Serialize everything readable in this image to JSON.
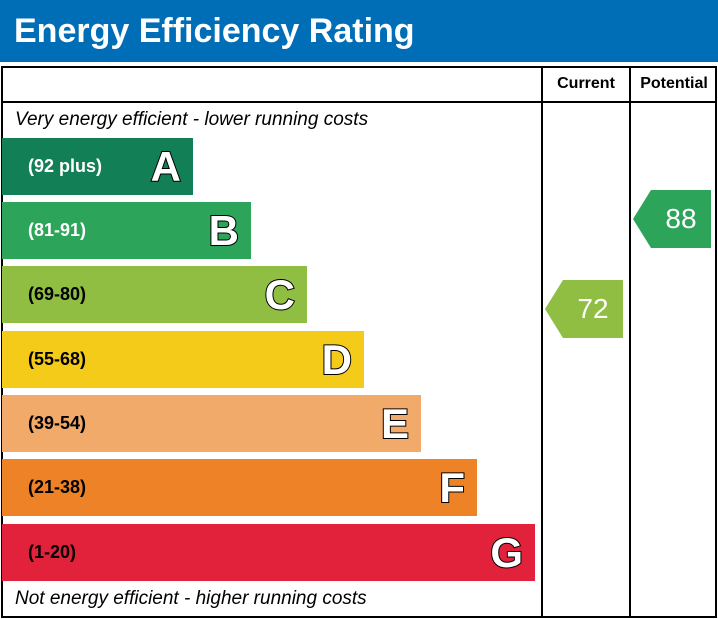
{
  "title": "Energy Efficiency Rating",
  "columns": {
    "current": "Current",
    "potential": "Potential"
  },
  "top_note": "Very energy efficient - lower running costs",
  "bottom_note": "Not energy efficient - higher running costs",
  "chart_data": {
    "type": "bar",
    "bands": [
      {
        "letter": "A",
        "range": "(92 plus)",
        "color": "#127f57"
      },
      {
        "letter": "B",
        "range": "(81-91)",
        "color": "#2ca55a"
      },
      {
        "letter": "C",
        "range": "(69-80)",
        "color": "#8fbe43"
      },
      {
        "letter": "D",
        "range": "(55-68)",
        "color": "#f5cb19"
      },
      {
        "letter": "E",
        "range": "(39-54)",
        "color": "#f2aa6b"
      },
      {
        "letter": "F",
        "range": "(21-38)",
        "color": "#ed8227"
      },
      {
        "letter": "G",
        "range": "(1-20)",
        "color": "#e2213b"
      }
    ],
    "current": {
      "value": "72",
      "band": "C",
      "color": "#8fbe43"
    },
    "potential": {
      "value": "88",
      "band": "B",
      "color": "#2ca55a"
    }
  }
}
